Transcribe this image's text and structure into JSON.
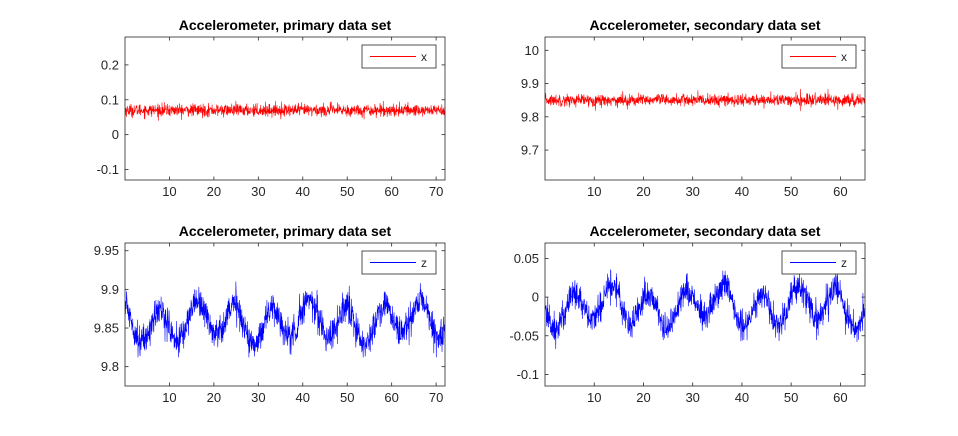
{
  "chart_data": [
    {
      "type": "line",
      "title": "Accelerometer, primary data set",
      "xlabel": "",
      "ylabel": "",
      "xlim": [
        0,
        72
      ],
      "ylim": [
        -0.13,
        0.28
      ],
      "xticks": [
        10,
        20,
        30,
        40,
        50,
        60,
        70
      ],
      "yticks": [
        -0.1,
        0,
        0.1,
        0.2
      ],
      "ytick_labels": [
        "-0.1",
        "0",
        "0.1",
        "0.2"
      ],
      "grid": false,
      "legend_position": "top-right",
      "series": [
        {
          "name": "x",
          "color": "#ff0000",
          "mean": 0.07,
          "noise": 0.009,
          "wave_amp": 0,
          "wave_period": 10,
          "min": 0.04,
          "max": 0.105
        }
      ]
    },
    {
      "type": "line",
      "title": "Accelerometer, secondary data set",
      "xlabel": "",
      "ylabel": "",
      "xlim": [
        0,
        65
      ],
      "ylim": [
        9.61,
        10.04
      ],
      "xticks": [
        10,
        20,
        30,
        40,
        50,
        60
      ],
      "yticks": [
        9.7,
        9.8,
        9.9,
        10
      ],
      "ytick_labels": [
        "9.7",
        "9.8",
        "9.9",
        "10"
      ],
      "grid": false,
      "legend_position": "top-right",
      "series": [
        {
          "name": "x",
          "color": "#ff0000",
          "mean": 9.85,
          "noise": 0.009,
          "wave_amp": 0,
          "wave_period": 10,
          "min": 9.815,
          "max": 9.885
        }
      ]
    },
    {
      "type": "line",
      "title": "Accelerometer, primary data set",
      "xlabel": "",
      "ylabel": "",
      "xlim": [
        0,
        72
      ],
      "ylim": [
        9.775,
        9.96
      ],
      "xticks": [
        10,
        20,
        30,
        40,
        50,
        60,
        70
      ],
      "yticks": [
        9.8,
        9.85,
        9.9,
        9.95
      ],
      "ytick_labels": [
        "9.8",
        "9.85",
        "9.9",
        "9.95"
      ],
      "grid": false,
      "legend_position": "top-right",
      "series": [
        {
          "name": "z",
          "color": "#0000ff",
          "mean": 9.858,
          "noise": 0.01,
          "wave_amp": 0.022,
          "wave_period": 8.4,
          "min": 9.812,
          "max": 9.91
        }
      ]
    },
    {
      "type": "line",
      "title": "Accelerometer, secondary data set",
      "xlabel": "",
      "ylabel": "",
      "xlim": [
        0,
        65
      ],
      "ylim": [
        -0.115,
        0.07
      ],
      "xticks": [
        10,
        20,
        30,
        40,
        50,
        60
      ],
      "yticks": [
        -0.1,
        -0.05,
        0,
        0.05
      ],
      "ytick_labels": [
        "-0.1",
        "-0.05",
        "0",
        "0.05"
      ],
      "grid": false,
      "legend_position": "top-right",
      "series": [
        {
          "name": "z",
          "color": "#0000ff",
          "mean": -0.012,
          "noise": 0.01,
          "wave_amp": 0.022,
          "wave_period": 7.6,
          "min": -0.075,
          "max": 0.035
        }
      ]
    }
  ]
}
